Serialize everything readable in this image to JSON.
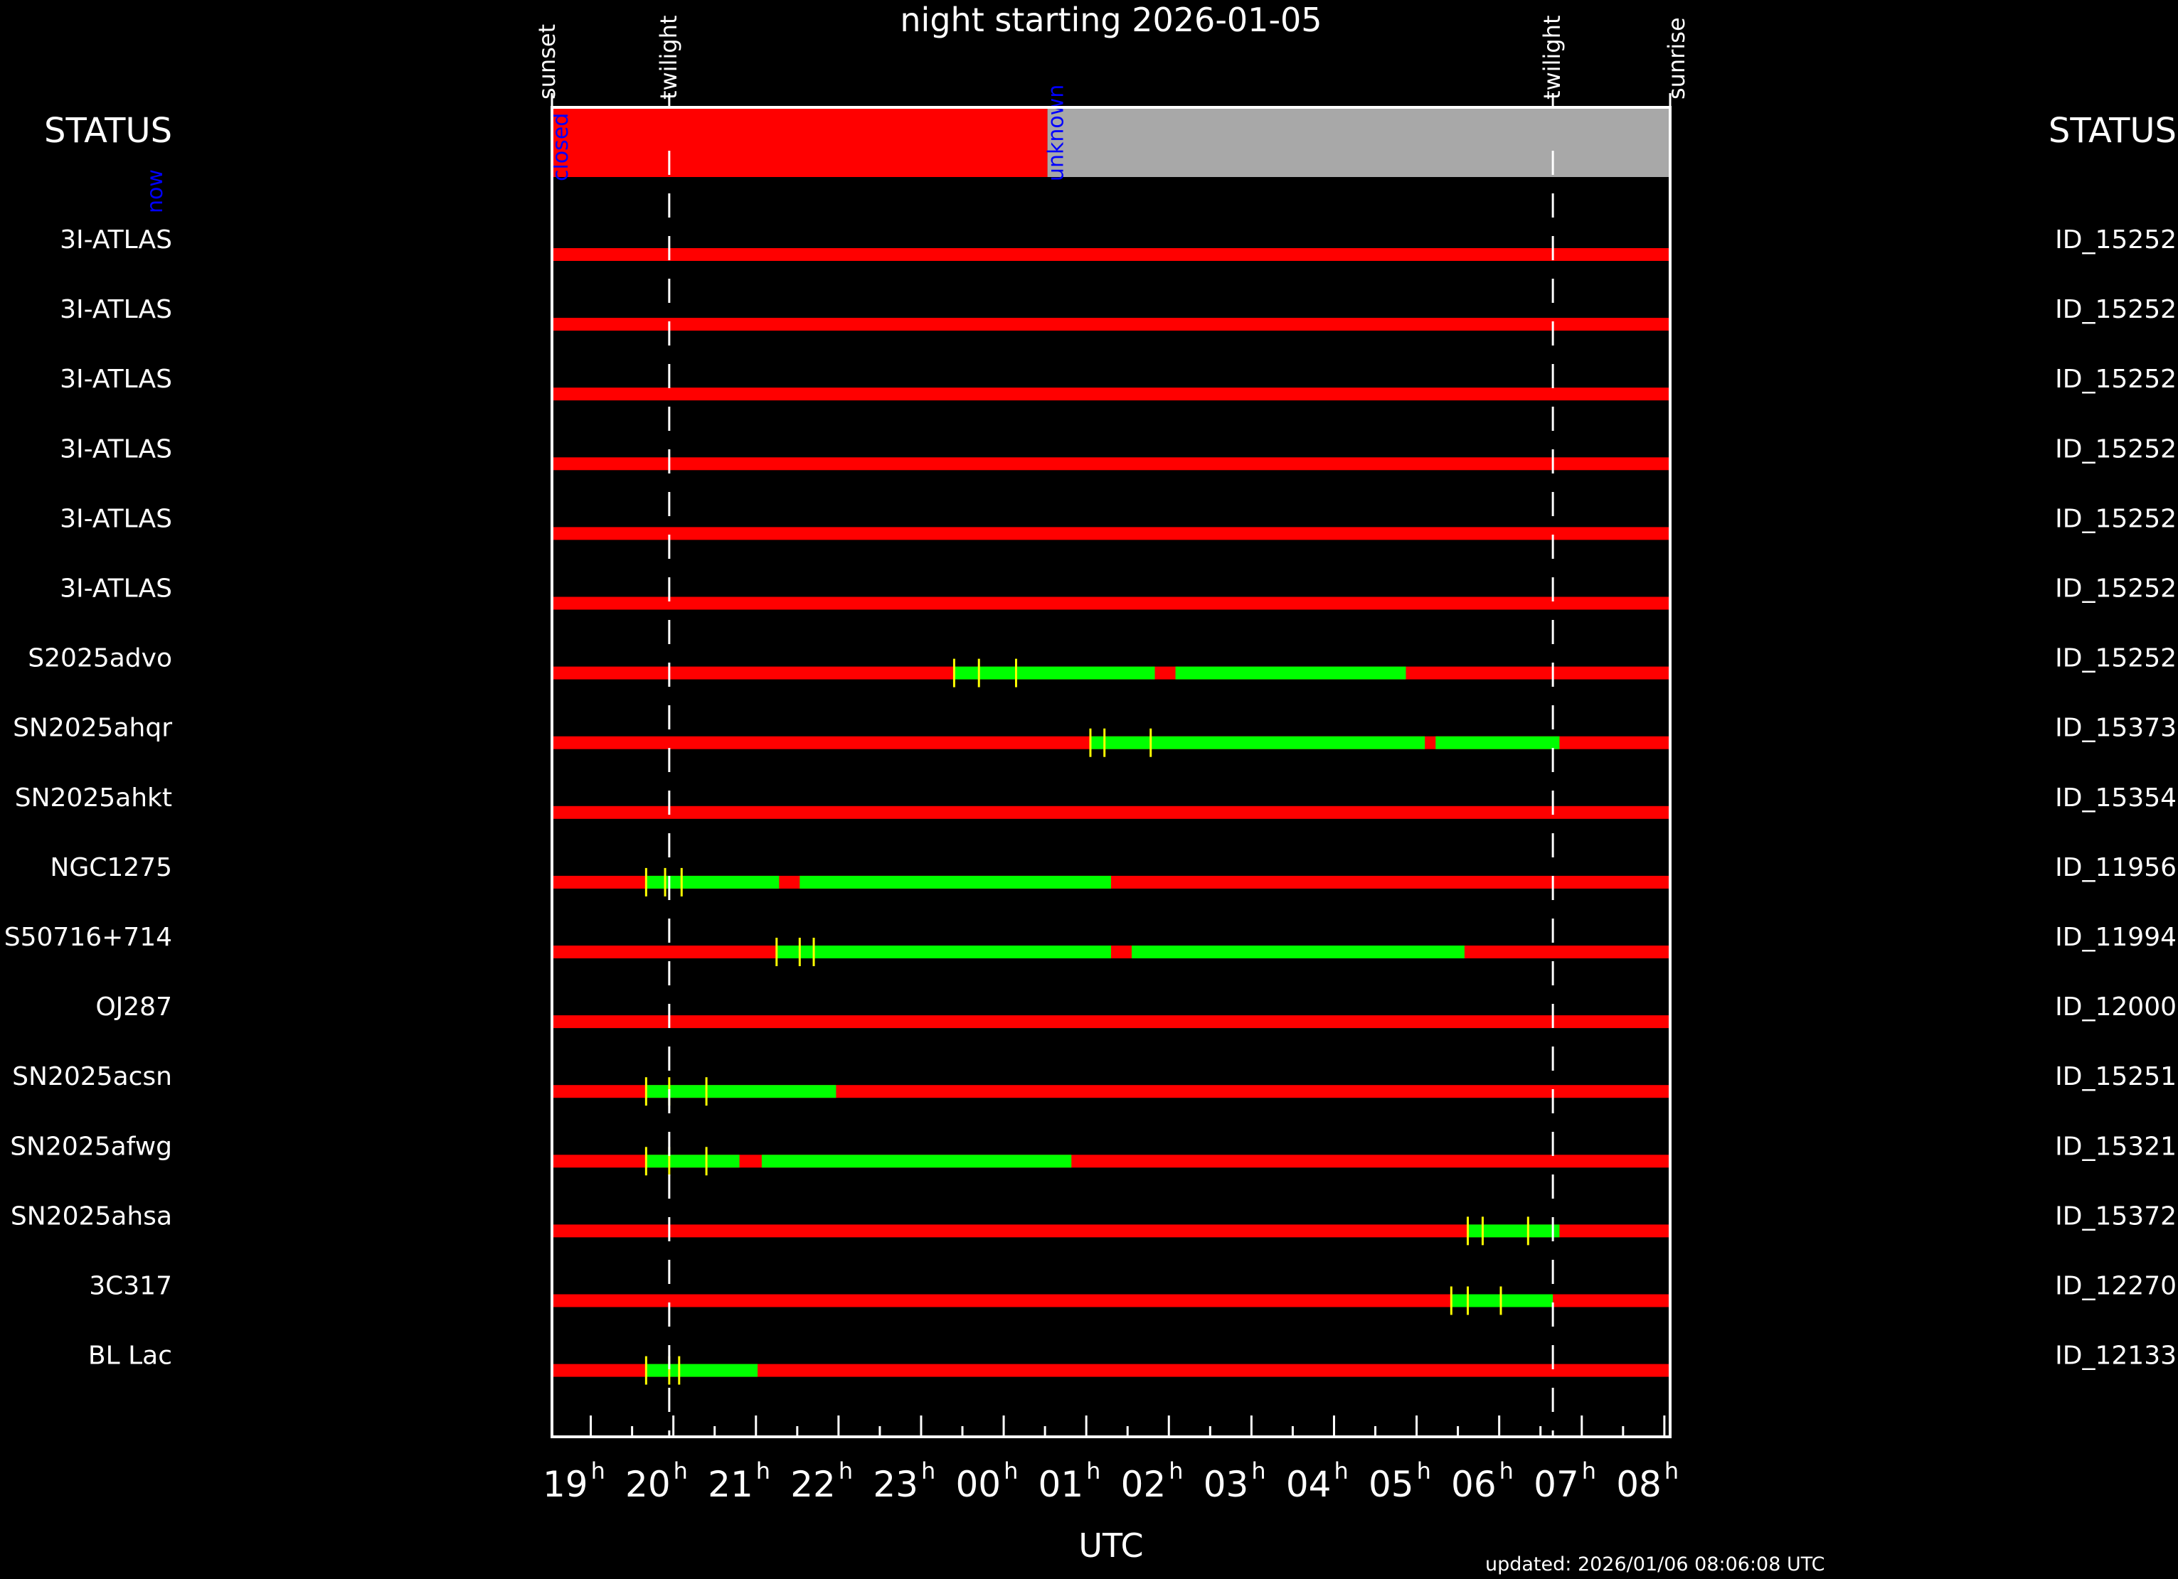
{
  "chart_data": {
    "type": "timeline",
    "title": "night starting 2026-01-05",
    "xlabel": "UTC",
    "status_label_left": "STATUS",
    "status_label_right": "STATUS",
    "updated_text": "updated: 2026/01/06 08:06:08 UTC",
    "hour_unit": "h",
    "x_range_hours": [
      18.53,
      32.07
    ],
    "hour_tick_labels": [
      {
        "label": "19",
        "hour": 19
      },
      {
        "label": "20",
        "hour": 20
      },
      {
        "label": "21",
        "hour": 21
      },
      {
        "label": "22",
        "hour": 22
      },
      {
        "label": "23",
        "hour": 23
      },
      {
        "label": "00",
        "hour": 24
      },
      {
        "label": "01",
        "hour": 25
      },
      {
        "label": "02",
        "hour": 26
      },
      {
        "label": "03",
        "hour": 27
      },
      {
        "label": "04",
        "hour": 28
      },
      {
        "label": "05",
        "hour": 29
      },
      {
        "label": "06",
        "hour": 30
      },
      {
        "label": "07",
        "hour": 31
      },
      {
        "label": "08",
        "hour": 32
      }
    ],
    "event_markers": [
      {
        "label": "sunset",
        "hour": 18.53,
        "line": false
      },
      {
        "label": "twilight",
        "hour": 19.95,
        "line": true
      },
      {
        "label": "twilight",
        "hour": 30.65,
        "line": true
      },
      {
        "label": "sunrise",
        "hour": 32.07,
        "line": false
      }
    ],
    "status_bar": [
      {
        "label": "closed",
        "start": 18.53,
        "end": 24.53,
        "color": "#ff0000"
      },
      {
        "label": "unknown",
        "start": 24.53,
        "end": 32.07,
        "color": "#a8a8a8"
      }
    ],
    "now_label": "now",
    "colors": {
      "unobservable": "#ff0000",
      "observable": "#00ff00",
      "marker": "#ffff00",
      "frame": "#ffffff",
      "annotation": "#0000ff"
    },
    "targets": [
      {
        "name": "3I-ATLAS",
        "id": "ID_15252",
        "green": [],
        "ticks": []
      },
      {
        "name": "3I-ATLAS",
        "id": "ID_15252",
        "green": [],
        "ticks": []
      },
      {
        "name": "3I-ATLAS",
        "id": "ID_15252",
        "green": [],
        "ticks": []
      },
      {
        "name": "3I-ATLAS",
        "id": "ID_15252",
        "green": [],
        "ticks": []
      },
      {
        "name": "3I-ATLAS",
        "id": "ID_15252",
        "green": [],
        "ticks": []
      },
      {
        "name": "3I-ATLAS",
        "id": "ID_15252",
        "green": [],
        "ticks": []
      },
      {
        "name": "S2025advo",
        "id": "ID_15252",
        "green": [
          [
            23.4,
            25.83
          ],
          [
            26.08,
            28.87
          ]
        ],
        "ticks": [
          23.4,
          23.7,
          24.15
        ]
      },
      {
        "name": "SN2025ahqr",
        "id": "ID_15373",
        "green": [
          [
            25.05,
            29.1
          ],
          [
            29.23,
            30.73
          ]
        ],
        "ticks": [
          25.05,
          25.22,
          25.78
        ]
      },
      {
        "name": "SN2025ahkt",
        "id": "ID_15354",
        "green": [],
        "ticks": []
      },
      {
        "name": "NGC1275",
        "id": "ID_11956",
        "green": [
          [
            19.67,
            21.28
          ],
          [
            21.53,
            25.3
          ]
        ],
        "ticks": [
          19.67,
          19.9,
          20.1
        ]
      },
      {
        "name": "S50716+714",
        "id": "ID_11994",
        "green": [
          [
            21.25,
            25.3
          ],
          [
            25.55,
            29.58
          ]
        ],
        "ticks": [
          21.25,
          21.53,
          21.7
        ]
      },
      {
        "name": "OJ287",
        "id": "ID_12000",
        "green": [],
        "ticks": []
      },
      {
        "name": "SN2025acsn",
        "id": "ID_15251",
        "green": [
          [
            19.67,
            21.97
          ]
        ],
        "ticks": [
          19.67,
          19.95,
          20.4
        ]
      },
      {
        "name": "SN2025afwg",
        "id": "ID_15321",
        "green": [
          [
            19.67,
            20.8
          ],
          [
            21.07,
            24.82
          ]
        ],
        "ticks": [
          19.67,
          19.95,
          20.4
        ]
      },
      {
        "name": "SN2025ahsa",
        "id": "ID_15372",
        "green": [
          [
            29.62,
            30.73
          ]
        ],
        "ticks": [
          29.62,
          29.8,
          30.35
        ]
      },
      {
        "name": "3C317",
        "id": "ID_12270",
        "green": [
          [
            29.42,
            30.65
          ]
        ],
        "ticks": [
          29.42,
          29.62,
          30.02
        ]
      },
      {
        "name": "BL Lac",
        "id": "ID_12133",
        "green": [
          [
            19.67,
            21.02
          ]
        ],
        "ticks": [
          19.67,
          19.95,
          20.07
        ]
      }
    ]
  }
}
